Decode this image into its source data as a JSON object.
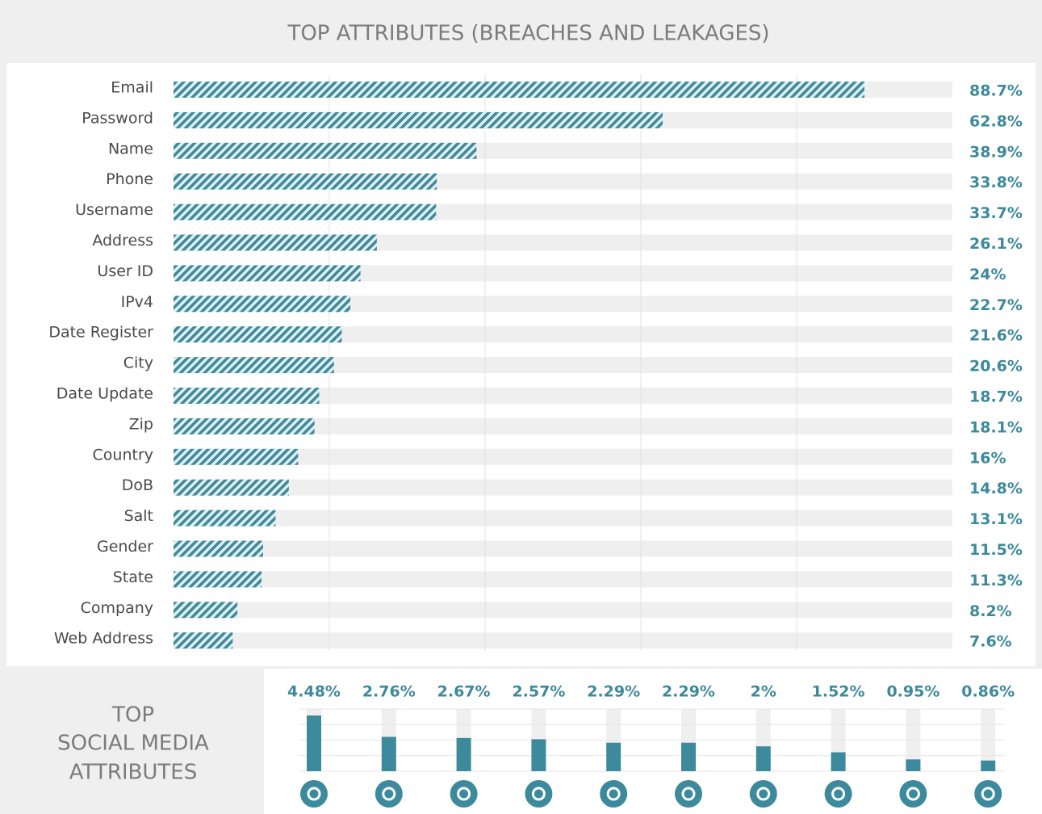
{
  "chart_data": [
    {
      "type": "bar",
      "orientation": "horizontal",
      "title": "TOP ATTRIBUTES (BREACHES AND LEAKAGES)",
      "categories": [
        "Email",
        "Password",
        "Name",
        "Phone",
        "Username",
        "Address",
        "User ID",
        "IPv4",
        "Date Register",
        "City",
        "Date Update",
        "Zip",
        "Country",
        "DoB",
        "Salt",
        "Gender",
        "State",
        "Company",
        "Web Address"
      ],
      "values": [
        88.7,
        62.8,
        38.9,
        33.8,
        33.7,
        26.1,
        24,
        22.7,
        21.6,
        20.6,
        18.7,
        18.1,
        16,
        14.8,
        13.1,
        11.5,
        11.3,
        8.2,
        7.6
      ],
      "value_labels": [
        "88.7%",
        "62.8%",
        "38.9%",
        "33.8%",
        "33.7%",
        "26.1%",
        "24%",
        "22.7%",
        "21.6%",
        "20.6%",
        "18.7%",
        "18.1%",
        "16%",
        "14.8%",
        "13.1%",
        "11.5%",
        "11.3%",
        "8.2%",
        "7.6%"
      ],
      "color": "#3d8a9c",
      "xlim": [
        0,
        100
      ],
      "xticks": [
        20,
        40,
        60,
        80
      ],
      "grid": true
    },
    {
      "type": "bar",
      "title": [
        "TOP",
        "SOCIAL MEDIA",
        "ATTRIBUTES"
      ],
      "categories": [
        null,
        null,
        null,
        null,
        null,
        null,
        null,
        null,
        null,
        null
      ],
      "values": [
        4.48,
        2.76,
        2.67,
        2.57,
        2.29,
        2.29,
        2,
        1.52,
        0.95,
        0.86
      ],
      "value_labels": [
        "4.48%",
        "2.76%",
        "2.67%",
        "2.57%",
        "2.29%",
        "2.29%",
        "2%",
        "1.52%",
        "0.95%",
        "0.86%"
      ],
      "color": "#3d8a9c",
      "ylim": [
        0,
        5
      ],
      "yticks": [
        0,
        1.25,
        2.5,
        3.75,
        5
      ],
      "grid": true
    }
  ]
}
